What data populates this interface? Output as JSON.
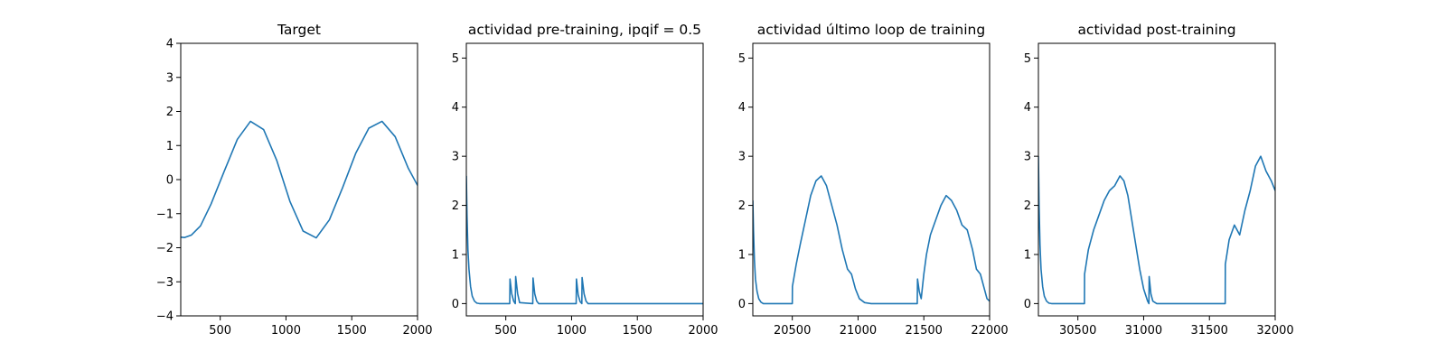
{
  "colors": {
    "series": "#1f77b4",
    "axes": "#000000",
    "background": "#ffffff"
  },
  "chart_data": [
    {
      "type": "line",
      "title": "Target",
      "xlabel": "",
      "ylabel": "",
      "xlim": [
        200,
        2000
      ],
      "ylim": [
        -4,
        4
      ],
      "xticks": [
        500,
        1000,
        1500,
        2000
      ],
      "xtick_labels": [
        "500",
        "1000",
        "1500",
        "2000"
      ],
      "yticks": [
        -4,
        -3,
        -2,
        -1,
        0,
        1,
        2,
        3,
        4
      ],
      "ytick_labels": [
        "−4",
        "−3",
        "−2",
        "−1",
        "0",
        "1",
        "2",
        "3",
        "4"
      ],
      "series": [
        {
          "x": [
            200,
            230,
            280,
            350,
            430,
            530,
            630,
            730,
            830,
            930,
            1030,
            1130,
            1230,
            1330,
            1430,
            1530,
            1630,
            1730,
            1830,
            1930,
            2000
          ],
          "y": [
            -1.69,
            -1.7,
            -1.63,
            -1.36,
            -0.72,
            0.24,
            1.18,
            1.71,
            1.47,
            0.56,
            -0.64,
            -1.51,
            -1.71,
            -1.18,
            -0.24,
            0.77,
            1.51,
            1.71,
            1.26,
            0.33,
            -0.17
          ]
        }
      ]
    },
    {
      "type": "line",
      "title": "actividad pre-training, ipqif = 0.5",
      "xlabel": "",
      "ylabel": "",
      "xlim": [
        200,
        2000
      ],
      "ylim": [
        -0.25,
        5.3
      ],
      "xticks": [
        500,
        1000,
        1500,
        2000
      ],
      "xtick_labels": [
        "500",
        "1000",
        "1500",
        "2000"
      ],
      "yticks": [
        0,
        1,
        2,
        3,
        4,
        5
      ],
      "ytick_labels": [
        "0",
        "1",
        "2",
        "3",
        "4",
        "5"
      ],
      "series": [
        {
          "x": [
            200,
            205,
            212,
            220,
            232,
            245,
            262,
            280,
            300,
            530,
            532,
            545,
            560,
            572,
            575,
            590,
            605,
            705,
            707,
            720,
            735,
            750,
            1035,
            1037,
            1050,
            1065,
            1078,
            1080,
            1095,
            1110,
            1125,
            2000
          ],
          "y": [
            2.6,
            1.8,
            1.1,
            0.7,
            0.35,
            0.15,
            0.05,
            0.01,
            0.0,
            0.0,
            0.5,
            0.2,
            0.05,
            0.0,
            0.55,
            0.2,
            0.02,
            0.0,
            0.52,
            0.2,
            0.05,
            0.0,
            0.0,
            0.5,
            0.18,
            0.04,
            0.0,
            0.53,
            0.2,
            0.05,
            0.0,
            0.0
          ]
        }
      ]
    },
    {
      "type": "line",
      "title": "actividad último loop de training",
      "xlabel": "",
      "ylabel": "",
      "xlim": [
        20200,
        22000
      ],
      "ylim": [
        -0.25,
        5.3
      ],
      "xticks": [
        20500,
        21000,
        21500,
        22000
      ],
      "xtick_labels": [
        "20500",
        "21000",
        "21500",
        "22000"
      ],
      "yticks": [
        0,
        1,
        2,
        3,
        4,
        5
      ],
      "ytick_labels": [
        "0",
        "1",
        "2",
        "3",
        "4",
        "5"
      ],
      "series": [
        {
          "x": [
            20200,
            20205,
            20212,
            20220,
            20232,
            20245,
            20262,
            20280,
            20300,
            20500,
            20501,
            20530,
            20560,
            20600,
            20640,
            20680,
            20720,
            20760,
            20800,
            20840,
            20880,
            20920,
            20950,
            20980,
            21010,
            21050,
            21100,
            21450,
            21452,
            21465,
            21480,
            21500,
            21520,
            21550,
            21590,
            21630,
            21670,
            21710,
            21750,
            21790,
            21830,
            21870,
            21900,
            21930,
            21960,
            21980,
            22000
          ],
          "y": [
            2.1,
            1.5,
            0.9,
            0.5,
            0.25,
            0.1,
            0.03,
            0.0,
            0.0,
            0.0,
            0.35,
            0.8,
            1.2,
            1.7,
            2.2,
            2.5,
            2.6,
            2.4,
            2.0,
            1.6,
            1.1,
            0.7,
            0.6,
            0.3,
            0.1,
            0.02,
            0.0,
            0.0,
            0.5,
            0.25,
            0.1,
            0.6,
            1.0,
            1.4,
            1.7,
            2.0,
            2.2,
            2.1,
            1.9,
            1.6,
            1.5,
            1.1,
            0.7,
            0.6,
            0.3,
            0.1,
            0.05
          ]
        }
      ]
    },
    {
      "type": "line",
      "title": "actividad post-training",
      "xlabel": "",
      "ylabel": "",
      "xlim": [
        30200,
        32000
      ],
      "ylim": [
        -0.25,
        5.3
      ],
      "xticks": [
        30500,
        31000,
        31500,
        32000
      ],
      "xtick_labels": [
        "30500",
        "31000",
        "31500",
        "32000"
      ],
      "yticks": [
        0,
        1,
        2,
        3,
        4,
        5
      ],
      "ytick_labels": [
        "0",
        "1",
        "2",
        "3",
        "4",
        "5"
      ],
      "series": [
        {
          "x": [
            30200,
            30205,
            30212,
            30220,
            30232,
            30245,
            30262,
            30280,
            30300,
            30550,
            30551,
            30580,
            30620,
            30660,
            30700,
            30740,
            30780,
            30820,
            30850,
            30880,
            30910,
            30940,
            30970,
            31000,
            31030,
            31040,
            31042,
            31055,
            31070,
            31100,
            31620,
            31621,
            31650,
            31690,
            31730,
            31770,
            31810,
            31850,
            31890,
            31930,
            31970,
            32000
          ],
          "y": [
            3.0,
            2.0,
            1.2,
            0.7,
            0.35,
            0.15,
            0.05,
            0.01,
            0.0,
            0.0,
            0.6,
            1.1,
            1.5,
            1.8,
            2.1,
            2.3,
            2.4,
            2.6,
            2.5,
            2.2,
            1.7,
            1.2,
            0.7,
            0.3,
            0.05,
            0.0,
            0.55,
            0.2,
            0.05,
            0.0,
            0.0,
            0.8,
            1.3,
            1.6,
            1.4,
            1.9,
            2.3,
            2.8,
            3.0,
            2.7,
            2.5,
            2.3
          ]
        }
      ]
    }
  ]
}
